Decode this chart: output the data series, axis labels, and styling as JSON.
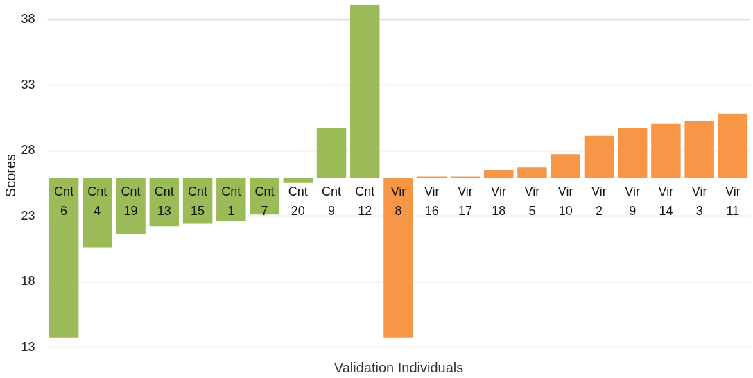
{
  "chart_data": {
    "type": "bar",
    "xlabel": "Validation Individuals",
    "ylabel": "Scores",
    "categories": [
      "Cnt 6",
      "Cnt 4",
      "Cnt 19",
      "Cnt 13",
      "Cnt 15",
      "Cnt 1",
      "Cnt 7",
      "Cnt 20",
      "Cnt 9",
      "Cnt 12",
      "Vir 8",
      "Vir 16",
      "Vir 17",
      "Vir 18",
      "Vir 5",
      "Vir 10",
      "Vir 2",
      "Vir 9",
      "Vir 14",
      "Vir 3",
      "Vir 11"
    ],
    "base": [
      25.9,
      25.9,
      25.9,
      25.9,
      25.9,
      25.9,
      25.9,
      25.9,
      25.9,
      25.9,
      25.9,
      25.9,
      25.9,
      25.9,
      25.9,
      25.9,
      25.9,
      25.9,
      25.9,
      25.9,
      25.9
    ],
    "values": [
      -12.2,
      -5.3,
      -4.3,
      -3.7,
      -3.5,
      -3.3,
      -2.8,
      -0.4,
      3.8,
      13.2,
      -12.2,
      0.1,
      0.1,
      0.6,
      0.8,
      1.8,
      3.2,
      3.8,
      4.1,
      4.3,
      4.9
    ],
    "colors": [
      "#9bbb59",
      "#9bbb59",
      "#9bbb59",
      "#9bbb59",
      "#9bbb59",
      "#9bbb59",
      "#9bbb59",
      "#9bbb59",
      "#9bbb59",
      "#9bbb59",
      "#f79646",
      "#f79646",
      "#f79646",
      "#f79646",
      "#f79646",
      "#f79646",
      "#f79646",
      "#f79646",
      "#f79646",
      "#f79646",
      "#f79646"
    ],
    "ylim": [
      13,
      39.2
    ],
    "yticks": [
      13,
      18,
      23,
      28,
      33,
      38
    ],
    "grid": "y"
  }
}
